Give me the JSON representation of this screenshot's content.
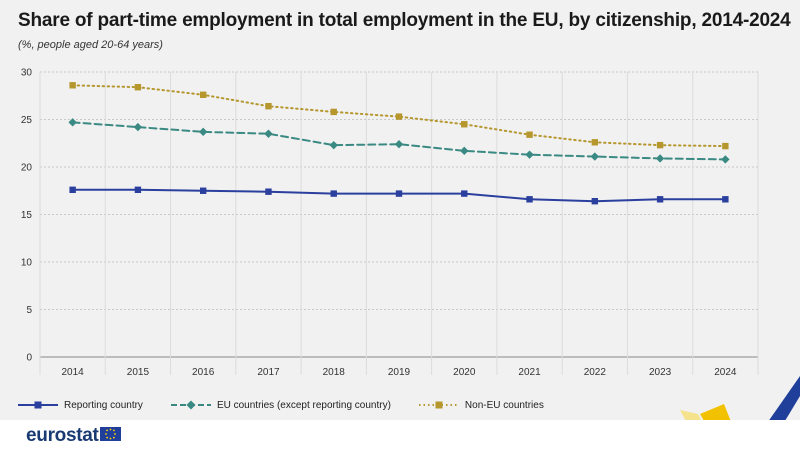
{
  "title": "Share of part-time employment in total employment in the EU, by citizenship, 2014-2024",
  "subtitle": "(%, people aged 20-64 years)",
  "logo": {
    "text": "eurostat",
    "flag": "eu-flag"
  },
  "colors": {
    "reporting": "#2a3f9e",
    "eu": "#3a8a83",
    "noneu": "#b5972e",
    "panel": "#f1f1f1"
  },
  "chart_data": {
    "type": "line",
    "title": "Share of part-time employment in total employment in the EU, by citizenship, 2014-2024",
    "subtitle": "(%, people aged 20-64 years)",
    "xlabel": "",
    "ylabel": "",
    "categories": [
      "2014",
      "2015",
      "2016",
      "2017",
      "2018",
      "2019",
      "2020",
      "2021",
      "2022",
      "2023",
      "2024"
    ],
    "ylim": [
      0,
      30
    ],
    "yticks": [
      "0",
      "5",
      "10",
      "15",
      "20",
      "25",
      "30"
    ],
    "grid": "horizontal",
    "legend_position": "bottom",
    "series": [
      {
        "name": "Reporting country",
        "style": "solid",
        "marker": "square",
        "color": "#2a3f9e",
        "values": [
          17.6,
          17.6,
          17.5,
          17.4,
          17.2,
          17.2,
          17.2,
          16.6,
          16.4,
          16.6,
          16.6
        ]
      },
      {
        "name": "EU countries (except reporting country)",
        "style": "dashed",
        "marker": "diamond",
        "color": "#3a8a83",
        "values": [
          24.7,
          24.2,
          23.7,
          23.5,
          22.3,
          22.4,
          21.7,
          21.3,
          21.1,
          20.9,
          20.8
        ]
      },
      {
        "name": "Non-EU countries",
        "style": "dotted",
        "marker": "square",
        "color": "#b5972e",
        "values": [
          28.6,
          28.4,
          27.6,
          26.4,
          25.8,
          25.3,
          24.5,
          23.4,
          22.6,
          22.3,
          22.2
        ]
      }
    ]
  }
}
